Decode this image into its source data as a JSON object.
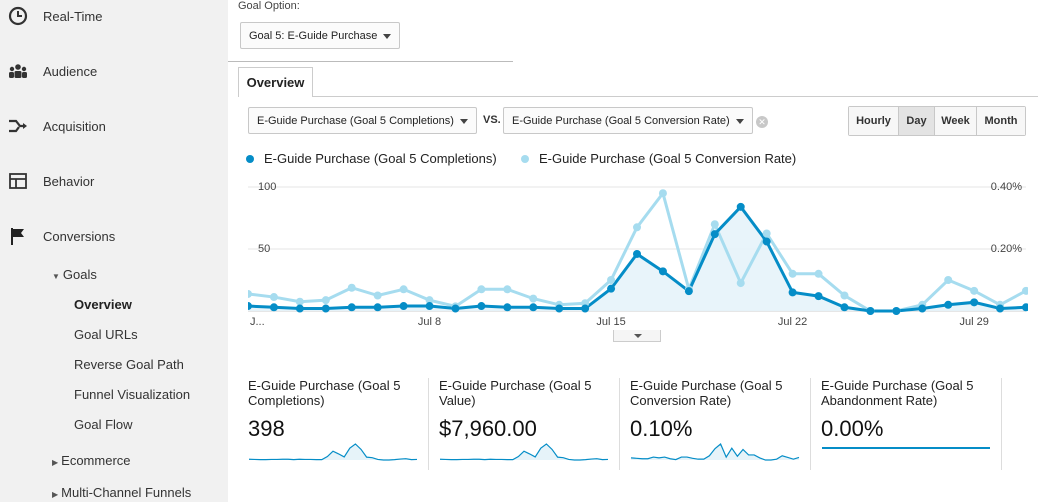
{
  "sidebar": {
    "items": [
      {
        "label": "Real-Time",
        "icon": "clock-icon"
      },
      {
        "label": "Audience",
        "icon": "people-icon"
      },
      {
        "label": "Acquisition",
        "icon": "acquisition-arrows-icon"
      },
      {
        "label": "Behavior",
        "icon": "layout-icon"
      },
      {
        "label": "Conversions",
        "icon": "flag-icon"
      }
    ],
    "goals": {
      "label": "Goals",
      "children": [
        "Overview",
        "Goal URLs",
        "Reverse Goal Path",
        "Funnel Visualization",
        "Goal Flow"
      ],
      "active": "Overview"
    },
    "ecommerce": "Ecommerce",
    "multichannel": "Multi-Channel Funnels"
  },
  "goal_option": {
    "label": "Goal Option:",
    "selected": "Goal 5: E-Guide Purchase"
  },
  "tabs": [
    "Overview"
  ],
  "compare": {
    "metric1": "E-Guide Purchase (Goal 5 Completions)",
    "vs": "VS.",
    "metric2": "E-Guide Purchase (Goal 5 Conversion Rate)"
  },
  "granularity": {
    "options": [
      "Hourly",
      "Day",
      "Week",
      "Month"
    ],
    "active": "Day"
  },
  "legend": {
    "series1": "E-Guide Purchase (Goal 5 Completions)",
    "series2": "E-Guide Purchase (Goal 5 Conversion Rate)"
  },
  "colors": {
    "series1": "#058dc7",
    "series2": "#a6dcef",
    "fill": "#e6f3f9"
  },
  "chart_data": {
    "type": "line",
    "x_ticks": [
      "J...",
      "Jul 8",
      "Jul 15",
      "Jul 22",
      "Jul 29"
    ],
    "y_left_ticks": [
      "100",
      "50"
    ],
    "y_right_ticks": [
      "0.40%",
      "0.20%"
    ],
    "ylim_left": [
      0,
      100
    ],
    "ylim_right": [
      0,
      0.4
    ],
    "series": [
      {
        "name": "E-Guide Purchase (Goal 5 Completions)",
        "values": [
          4,
          3,
          2,
          2,
          3,
          3,
          4,
          4,
          2,
          4,
          3,
          3,
          2,
          2,
          18,
          46,
          32,
          16,
          62,
          84,
          56,
          15,
          12,
          3,
          0,
          0,
          2,
          5,
          7,
          2,
          3
        ]
      },
      {
        "name": "E-Guide Purchase (Goal 5 Conversion Rate)",
        "values": [
          0.055,
          0.045,
          0.03,
          0.035,
          0.075,
          0.05,
          0.07,
          0.035,
          0.015,
          0.07,
          0.07,
          0.04,
          0.02,
          0.025,
          0.1,
          0.27,
          0.38,
          0.07,
          0.28,
          0.09,
          0.25,
          0.12,
          0.12,
          0.05,
          0.0,
          0.0,
          0.02,
          0.1,
          0.065,
          0.02,
          0.065
        ]
      }
    ]
  },
  "metrics": [
    {
      "label": "E-Guide Purchase (Goal 5 Completions)",
      "value": "398",
      "spark": [
        4,
        3,
        2,
        2,
        3,
        3,
        4,
        4,
        2,
        4,
        3,
        3,
        2,
        2,
        18,
        46,
        32,
        16,
        62,
        84,
        56,
        15,
        12,
        3,
        0,
        0,
        2,
        5,
        7,
        2,
        3
      ]
    },
    {
      "label": "E-Guide Purchase (Goal 5 Value)",
      "value": "$7,960.00",
      "spark": [
        4,
        3,
        2,
        2,
        3,
        3,
        4,
        4,
        2,
        4,
        3,
        3,
        2,
        2,
        18,
        46,
        32,
        16,
        62,
        84,
        56,
        15,
        12,
        3,
        0,
        0,
        2,
        5,
        7,
        2,
        3
      ]
    },
    {
      "label": "E-Guide Purchase (Goal 5 Conversion Rate)",
      "value": "0.10%",
      "spark": [
        5,
        4,
        3,
        3,
        7,
        5,
        7,
        3,
        1,
        7,
        7,
        4,
        2,
        2,
        10,
        27,
        38,
        7,
        28,
        9,
        25,
        12,
        12,
        5,
        0,
        0,
        2,
        10,
        6,
        2,
        6
      ]
    },
    {
      "label": "E-Guide Purchase (Goal 5 Abandonment Rate)",
      "value": "0.00%",
      "spark": [
        0,
        0,
        0,
        0,
        0,
        0,
        0,
        0,
        0,
        0,
        0,
        0,
        0,
        0,
        0,
        0,
        0,
        0,
        0,
        0,
        0,
        0,
        0,
        0,
        0,
        0,
        0,
        0,
        0,
        0,
        0
      ]
    }
  ]
}
